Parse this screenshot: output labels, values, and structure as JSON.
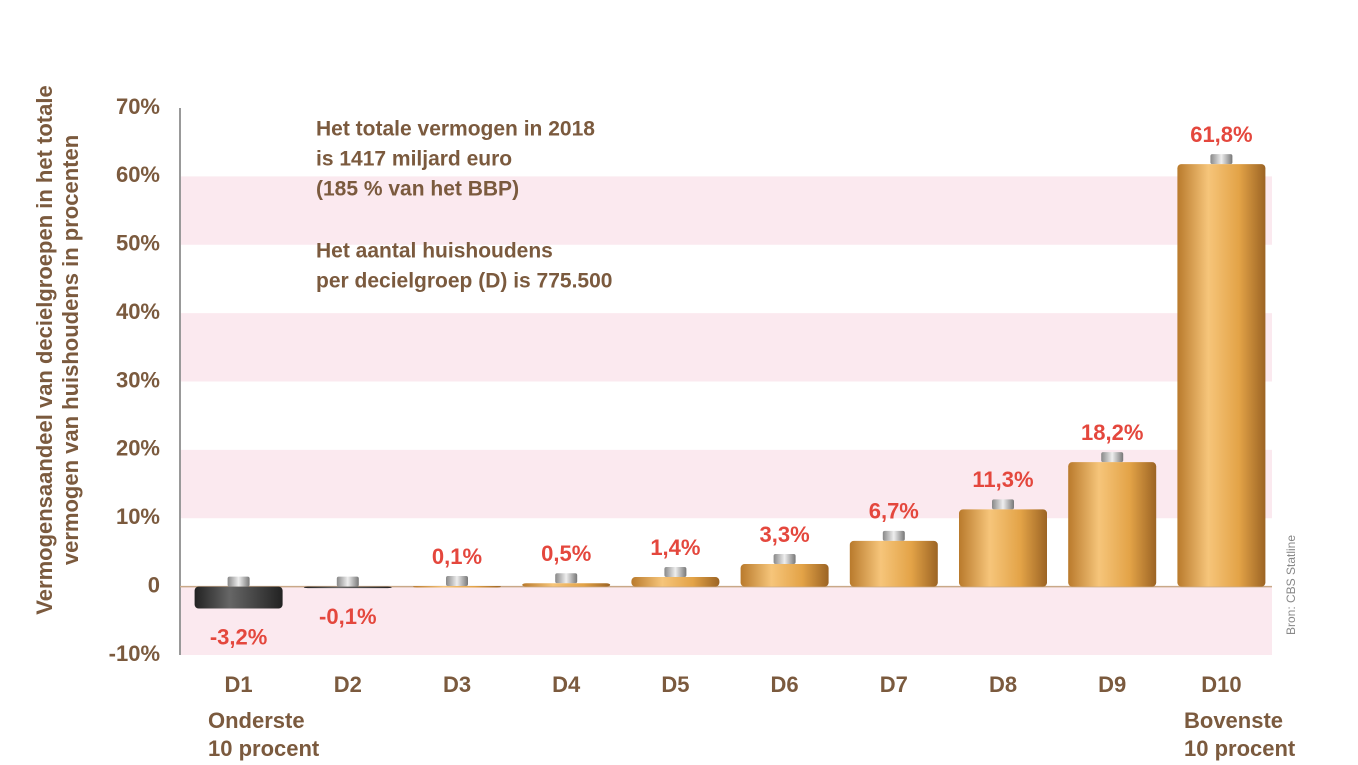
{
  "chart_data": {
    "type": "bar",
    "ylabel": [
      "Vermogensaandeel van decielgroepen in het totale",
      "vermogen van huishoudens in procenten"
    ],
    "annotations": [
      "Het totale vermogen in 2018",
      "is 1417 miljard euro",
      "(185 % van het BBP)",
      "Het aantal huishoudens",
      "per decielgroep (D) is 775.500"
    ],
    "categories": [
      "D1",
      "D2",
      "D3",
      "D4",
      "D5",
      "D6",
      "D7",
      "D8",
      "D9",
      "D10"
    ],
    "values": [
      -3.2,
      -0.1,
      0.1,
      0.5,
      1.4,
      3.3,
      6.7,
      11.3,
      18.2,
      61.8
    ],
    "value_labels": [
      "-3,2%",
      "-0,1%",
      "0,1%",
      "0,5%",
      "1,4%",
      "3,3%",
      "6,7%",
      "11,3%",
      "18,2%",
      "61,8%"
    ],
    "bottom_label": [
      "Onderste",
      "10 procent"
    ],
    "top_label": [
      "Bovenste",
      "10 procent"
    ],
    "source": "Bron: CBS Statline",
    "ylim": [
      -10,
      70
    ],
    "yticks": [
      {
        "value": -10,
        "label": "-10%"
      },
      0,
      {
        "value": 10,
        "label": "10%"
      },
      {
        "value": 20,
        "label": "20%"
      },
      {
        "value": 30,
        "label": "30%"
      },
      {
        "value": 40,
        "label": "40%"
      },
      {
        "value": 50,
        "label": "50%"
      },
      {
        "value": 60,
        "label": "60%"
      },
      {
        "value": 70,
        "label": "70%"
      }
    ],
    "color": "#e3a347",
    "negative_color": "#3a3a3a",
    "band_color": "#fbe9ef"
  }
}
